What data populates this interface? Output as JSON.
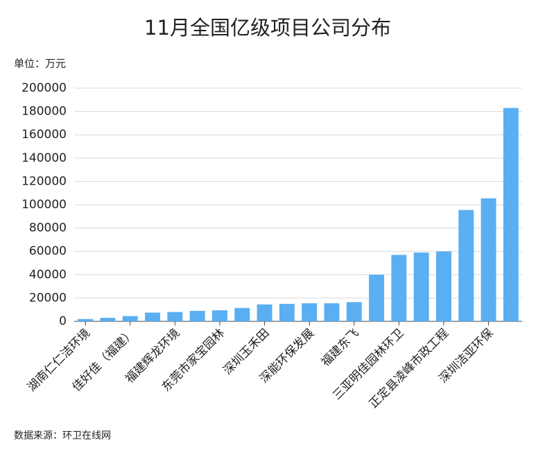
{
  "chart_data": {
    "type": "bar",
    "title": "11月全国亿级项目公司分布",
    "y_unit": "单位：万元",
    "source": "数据来源：环卫在线网",
    "categories": [
      "湖南仁仁洁环境",
      null,
      "佳好佳（福建）",
      null,
      "福建辉龙环境",
      null,
      "东莞市家宝园林",
      null,
      "深圳玉禾田",
      null,
      "深能环保发展",
      null,
      "福建东飞",
      null,
      "三亚明佳园林环卫",
      null,
      "正定县凌峰市政工程",
      null,
      "深圳洁亚环保",
      null
    ],
    "values": [
      2000,
      3000,
      4500,
      7500,
      8000,
      9000,
      9500,
      11500,
      14500,
      15000,
      15500,
      15500,
      16500,
      40000,
      57000,
      59000,
      60000,
      95500,
      105500,
      183000
    ],
    "color": "#5aaff2",
    "ylim": [
      0,
      200000
    ],
    "yticks": [
      0,
      20000,
      40000,
      60000,
      80000,
      100000,
      120000,
      140000,
      160000,
      180000,
      200000
    ],
    "grid": true
  }
}
